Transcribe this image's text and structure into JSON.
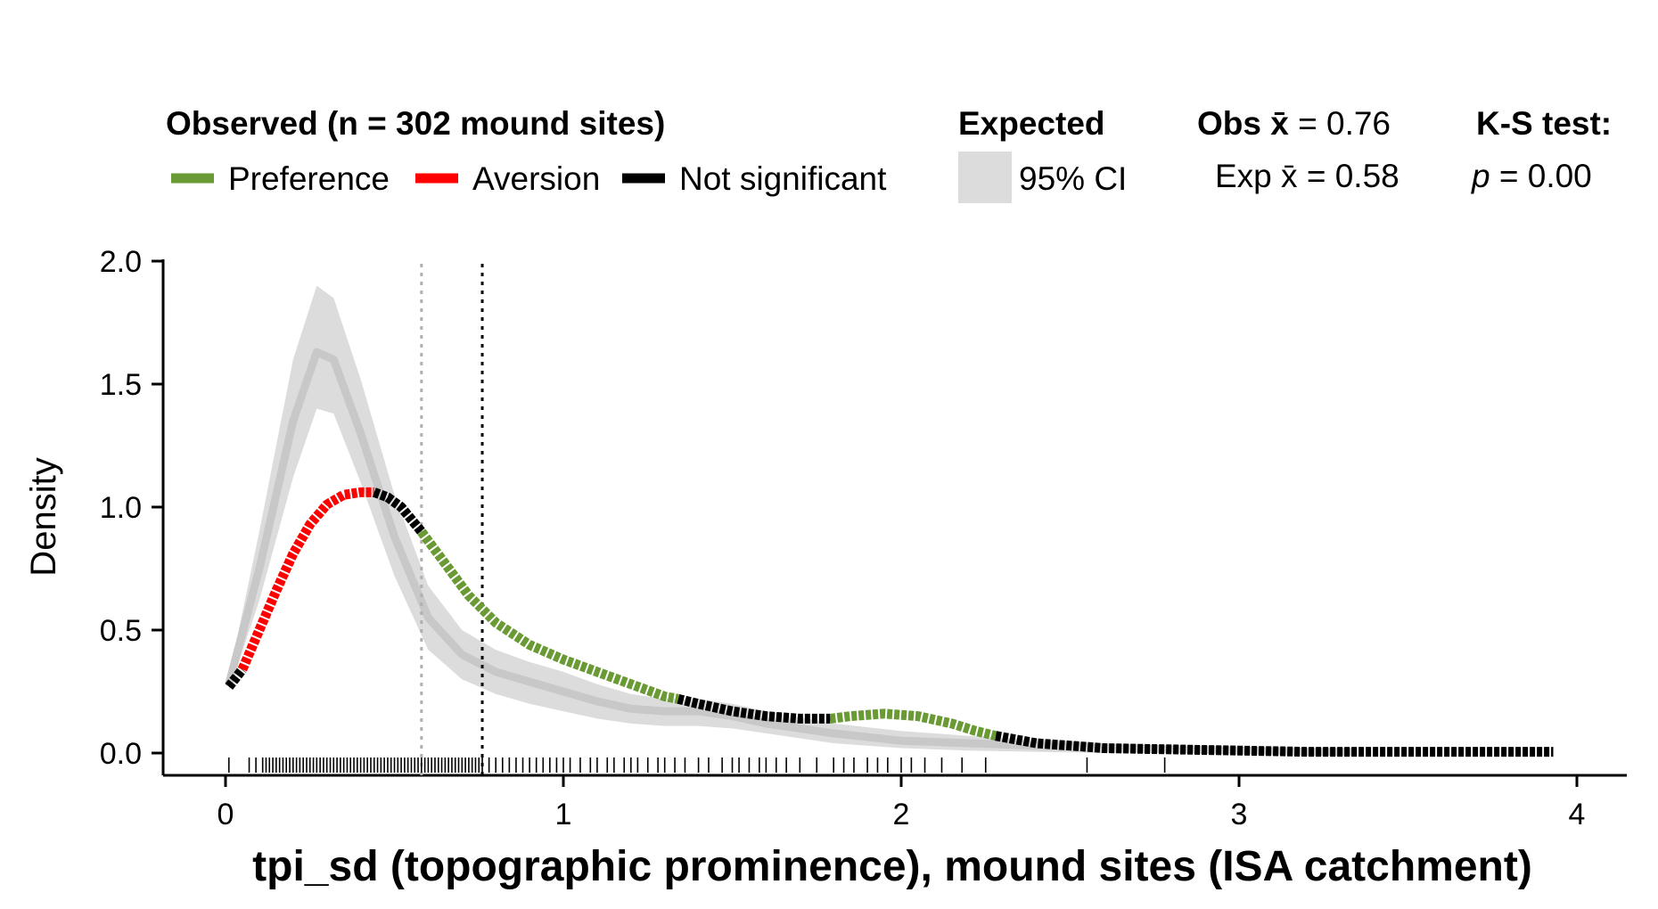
{
  "legend": {
    "observed_title": "Observed (n = 302 mound sites)",
    "preference": "Preference",
    "aversion": "Aversion",
    "not_significant": "Not significant",
    "expected_title": "Expected",
    "ci_label": "95% CI",
    "obs_mean_label": "Obs x̄",
    "obs_mean_value": " = 0.76",
    "exp_mean_label": "Exp x̄",
    "exp_mean_value": " = 0.58",
    "ks_title": "K-S test:",
    "ks_p_label": "p",
    "ks_p_value": " = 0.00"
  },
  "colors": {
    "preference": "#6a9a34",
    "aversion": "#ff0000",
    "not_significant": "#000000",
    "expected_line": "#c8c8c8",
    "ci_fill": "#dcdcdc",
    "exp_mean_line": "#b0b0b0",
    "obs_mean_line": "#000000"
  },
  "chart_data": {
    "type": "line",
    "title": "",
    "xlabel": "tpi_sd (topographic prominence), mound sites (ISA catchment)",
    "ylabel": "Density",
    "xlim": [
      -0.15,
      4.15
    ],
    "ylim": [
      -0.09,
      2.0
    ],
    "x_ticks": [
      "0",
      "1",
      "2",
      "3",
      "4"
    ],
    "x_tick_values": [
      0,
      1,
      2,
      3,
      4
    ],
    "y_ticks": [
      "0.0",
      "0.5",
      "1.0",
      "1.5",
      "2.0"
    ],
    "y_tick_values": [
      0,
      0.5,
      1.0,
      1.5,
      2.0
    ],
    "grid": false,
    "legend_position": "top",
    "expected": {
      "x": [
        0.01,
        0.1,
        0.2,
        0.27,
        0.32,
        0.4,
        0.5,
        0.6,
        0.7,
        0.8,
        0.9,
        1.0,
        1.1,
        1.2,
        1.3,
        1.4,
        1.5,
        1.6,
        1.8,
        2.0,
        2.2,
        2.4,
        2.6,
        2.8,
        3.0,
        3.2,
        3.35
      ],
      "y": [
        0.28,
        0.75,
        1.35,
        1.63,
        1.6,
        1.3,
        0.88,
        0.55,
        0.4,
        0.33,
        0.29,
        0.25,
        0.21,
        0.18,
        0.17,
        0.17,
        0.15,
        0.12,
        0.08,
        0.05,
        0.04,
        0.03,
        0.02,
        0.015,
        0.01,
        0.005,
        0.005
      ],
      "lower": [
        0.25,
        0.62,
        1.12,
        1.4,
        1.38,
        1.1,
        0.72,
        0.42,
        0.3,
        0.24,
        0.2,
        0.17,
        0.14,
        0.12,
        0.11,
        0.11,
        0.1,
        0.08,
        0.04,
        0.02,
        0.01,
        0.005,
        0.0,
        0.0,
        0.0,
        0.0,
        0.0
      ],
      "upper": [
        0.31,
        0.9,
        1.6,
        1.9,
        1.85,
        1.52,
        1.05,
        0.68,
        0.5,
        0.42,
        0.37,
        0.33,
        0.28,
        0.24,
        0.22,
        0.22,
        0.2,
        0.17,
        0.12,
        0.09,
        0.07,
        0.055,
        0.04,
        0.03,
        0.02,
        0.015,
        0.015
      ]
    },
    "observed": [
      {
        "significance": "not_significant",
        "x": [
          0.01,
          0.05
        ],
        "y": [
          0.27,
          0.34
        ]
      },
      {
        "significance": "aversion",
        "x": [
          0.05,
          0.1,
          0.15,
          0.2,
          0.25,
          0.3,
          0.35,
          0.4,
          0.44
        ],
        "y": [
          0.34,
          0.5,
          0.66,
          0.81,
          0.93,
          1.01,
          1.05,
          1.06,
          1.06
        ]
      },
      {
        "significance": "not_significant",
        "x": [
          0.44,
          0.48,
          0.52,
          0.58
        ],
        "y": [
          1.06,
          1.04,
          1.0,
          0.9
        ]
      },
      {
        "significance": "preference",
        "x": [
          0.58,
          0.65,
          0.72,
          0.8,
          0.9,
          1.0,
          1.1,
          1.2,
          1.3,
          1.34
        ],
        "y": [
          0.9,
          0.77,
          0.64,
          0.53,
          0.44,
          0.38,
          0.33,
          0.28,
          0.23,
          0.22
        ]
      },
      {
        "significance": "not_significant",
        "x": [
          1.34,
          1.4,
          1.5,
          1.6,
          1.7,
          1.79
        ],
        "y": [
          0.22,
          0.2,
          0.17,
          0.15,
          0.14,
          0.14
        ]
      },
      {
        "significance": "preference",
        "x": [
          1.79,
          1.85,
          1.95,
          2.05,
          2.15,
          2.22,
          2.28
        ],
        "y": [
          0.14,
          0.15,
          0.16,
          0.15,
          0.12,
          0.09,
          0.07
        ]
      },
      {
        "significance": "not_significant",
        "x": [
          2.28,
          2.4,
          2.5,
          2.6,
          2.8,
          3.0,
          3.2,
          3.5,
          3.8,
          3.93
        ],
        "y": [
          0.07,
          0.04,
          0.03,
          0.02,
          0.015,
          0.01,
          0.005,
          0.005,
          0.005,
          0.005
        ]
      }
    ],
    "exp_mean": 0.58,
    "obs_mean": 0.76,
    "rug": [
      0.01,
      0.07,
      0.09,
      0.11,
      0.12,
      0.13,
      0.14,
      0.15,
      0.16,
      0.17,
      0.18,
      0.19,
      0.2,
      0.21,
      0.22,
      0.23,
      0.24,
      0.25,
      0.26,
      0.27,
      0.28,
      0.29,
      0.3,
      0.31,
      0.32,
      0.33,
      0.34,
      0.35,
      0.36,
      0.37,
      0.38,
      0.39,
      0.4,
      0.41,
      0.42,
      0.43,
      0.44,
      0.45,
      0.46,
      0.47,
      0.48,
      0.49,
      0.5,
      0.51,
      0.52,
      0.53,
      0.54,
      0.55,
      0.56,
      0.57,
      0.58,
      0.59,
      0.6,
      0.61,
      0.62,
      0.63,
      0.64,
      0.65,
      0.66,
      0.67,
      0.68,
      0.69,
      0.7,
      0.71,
      0.72,
      0.73,
      0.74,
      0.75,
      0.76,
      0.78,
      0.8,
      0.82,
      0.84,
      0.86,
      0.88,
      0.9,
      0.92,
      0.94,
      0.96,
      0.98,
      1.0,
      1.02,
      1.05,
      1.08,
      1.1,
      1.13,
      1.15,
      1.18,
      1.2,
      1.22,
      1.25,
      1.28,
      1.3,
      1.33,
      1.36,
      1.4,
      1.43,
      1.47,
      1.5,
      1.52,
      1.55,
      1.58,
      1.6,
      1.63,
      1.66,
      1.7,
      1.75,
      1.8,
      1.83,
      1.86,
      1.9,
      1.93,
      1.96,
      2.0,
      2.03,
      2.07,
      2.12,
      2.18,
      2.25,
      2.55,
      2.78
    ]
  }
}
